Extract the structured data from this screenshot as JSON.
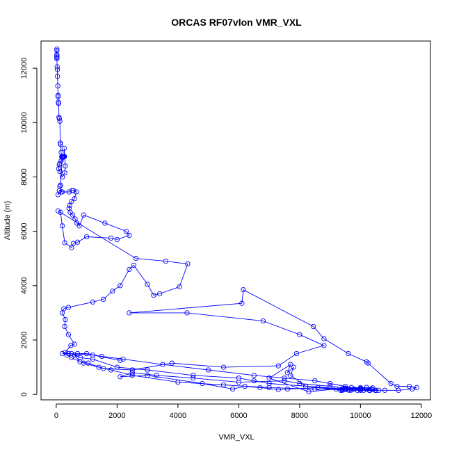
{
  "chart_data": {
    "type": "line",
    "title": "ORCAS RF07vlon VMR_VXL",
    "xlabel": "VMR_VXL",
    "ylabel": "Altitude (m)",
    "xlim": [
      -500,
      12300
    ],
    "ylim": [
      -200,
      13000
    ],
    "x_ticks": [
      0,
      2000,
      4000,
      6000,
      8000,
      10000,
      12000
    ],
    "y_ticks": [
      0,
      2000,
      4000,
      6000,
      8000,
      10000,
      12000
    ],
    "grid": false,
    "legend": "none",
    "series": [
      {
        "color": "#0000ff",
        "marker": "open-circle",
        "points": [
          [
            20,
            12700
          ],
          [
            20,
            12650
          ],
          [
            20,
            12500
          ],
          [
            20,
            12450
          ],
          [
            20,
            12400
          ],
          [
            20,
            12350
          ],
          [
            30,
            12050
          ],
          [
            40,
            11950
          ],
          [
            40,
            11700
          ],
          [
            50,
            11350
          ],
          [
            60,
            11000
          ],
          [
            60,
            10950
          ],
          [
            70,
            10750
          ],
          [
            80,
            10700
          ],
          [
            90,
            10200
          ],
          [
            100,
            10150
          ],
          [
            120,
            10050
          ],
          [
            130,
            9250
          ],
          [
            140,
            9200
          ],
          [
            160,
            8900
          ],
          [
            180,
            8750
          ],
          [
            190,
            8750
          ],
          [
            200,
            8750
          ],
          [
            210,
            8750
          ],
          [
            220,
            8750
          ],
          [
            230,
            8750
          ],
          [
            240,
            8750
          ],
          [
            250,
            8750
          ],
          [
            260,
            8750
          ],
          [
            270,
            8750
          ],
          [
            260,
            9050
          ],
          [
            300,
            8400
          ],
          [
            280,
            8150
          ],
          [
            200,
            8000
          ],
          [
            120,
            8200
          ],
          [
            80,
            8300
          ],
          [
            100,
            8450
          ],
          [
            120,
            8500
          ],
          [
            160,
            8600
          ],
          [
            200,
            8700
          ],
          [
            140,
            7700
          ],
          [
            120,
            7650
          ],
          [
            160,
            7450
          ],
          [
            60,
            7350
          ],
          [
            100,
            7500
          ],
          [
            200,
            7450
          ],
          [
            420,
            7450
          ],
          [
            520,
            7500
          ],
          [
            560,
            7500
          ],
          [
            660,
            7450
          ],
          [
            600,
            7200
          ],
          [
            500,
            7100
          ],
          [
            440,
            6950
          ],
          [
            420,
            6850
          ],
          [
            460,
            6700
          ],
          [
            540,
            6600
          ],
          [
            620,
            6450
          ],
          [
            680,
            6300
          ],
          [
            760,
            6200
          ],
          [
            900,
            6600
          ],
          [
            1600,
            6300
          ],
          [
            2300,
            6000
          ],
          [
            2400,
            5850
          ],
          [
            2000,
            5700
          ],
          [
            1800,
            5750
          ],
          [
            1000,
            5800
          ],
          [
            700,
            5600
          ],
          [
            560,
            5550
          ],
          [
            500,
            5400
          ],
          [
            280,
            5580
          ],
          [
            200,
            6200
          ],
          [
            140,
            6700
          ],
          [
            60,
            6750
          ],
          [
            2620,
            5000
          ],
          [
            3600,
            4900
          ],
          [
            4320,
            4800
          ],
          [
            4050,
            3960
          ],
          [
            3400,
            3700
          ],
          [
            3200,
            3650
          ],
          [
            3000,
            4050
          ],
          [
            2550,
            4750
          ],
          [
            2400,
            4600
          ],
          [
            2100,
            4000
          ],
          [
            1850,
            3800
          ],
          [
            1550,
            3500
          ],
          [
            1200,
            3400
          ],
          [
            400,
            3200
          ],
          [
            250,
            3150
          ],
          [
            200,
            3000
          ],
          [
            300,
            2750
          ],
          [
            280,
            2500
          ],
          [
            400,
            2200
          ],
          [
            600,
            1850
          ],
          [
            480,
            1800
          ],
          [
            300,
            1550
          ],
          [
            200,
            1500
          ],
          [
            500,
            1500
          ],
          [
            600,
            1450
          ],
          [
            780,
            1200
          ],
          [
            1050,
            1150
          ],
          [
            1550,
            950
          ],
          [
            2500,
            900
          ],
          [
            3800,
            1150
          ],
          [
            5500,
            1000
          ],
          [
            7300,
            1050
          ],
          [
            7900,
            1500
          ],
          [
            8800,
            1800
          ],
          [
            8000,
            2200
          ],
          [
            6800,
            2700
          ],
          [
            4300,
            3000
          ],
          [
            2400,
            3000
          ],
          [
            6100,
            3350
          ],
          [
            6150,
            3850
          ],
          [
            8450,
            2500
          ],
          [
            8800,
            2050
          ],
          [
            9600,
            1500
          ],
          [
            10200,
            1200
          ],
          [
            10250,
            1150
          ],
          [
            11000,
            400
          ],
          [
            11200,
            300
          ],
          [
            11600,
            300
          ],
          [
            11850,
            250
          ],
          [
            11700,
            200
          ],
          [
            11250,
            150
          ],
          [
            10800,
            150
          ],
          [
            10500,
            150
          ],
          [
            10300,
            150
          ],
          [
            10100,
            150
          ],
          [
            9900,
            150
          ],
          [
            9650,
            150
          ],
          [
            9500,
            180
          ],
          [
            9350,
            150
          ],
          [
            9400,
            200
          ],
          [
            9700,
            250
          ],
          [
            10000,
            250
          ],
          [
            10200,
            260
          ],
          [
            10400,
            240
          ],
          [
            10000,
            200
          ],
          [
            9200,
            200
          ],
          [
            8600,
            250
          ],
          [
            7600,
            200
          ],
          [
            7300,
            180
          ],
          [
            6700,
            250
          ],
          [
            6200,
            300
          ],
          [
            5800,
            200
          ],
          [
            4800,
            400
          ],
          [
            3000,
            700
          ],
          [
            2100,
            650
          ],
          [
            2500,
            800
          ],
          [
            3300,
            700
          ],
          [
            4500,
            600
          ],
          [
            6000,
            450
          ],
          [
            7500,
            500
          ],
          [
            8000,
            400
          ],
          [
            9000,
            300
          ],
          [
            9800,
            200
          ],
          [
            10000,
            150
          ],
          [
            10300,
            140
          ],
          [
            10500,
            140
          ],
          [
            10600,
            150
          ],
          [
            10350,
            200
          ],
          [
            10000,
            220
          ],
          [
            9500,
            230
          ],
          [
            8300,
            100
          ],
          [
            7000,
            600
          ],
          [
            7700,
            1100
          ],
          [
            7600,
            800
          ],
          [
            7800,
            1000
          ],
          [
            7700,
            700
          ],
          [
            8200,
            300
          ],
          [
            9400,
            150
          ],
          [
            9600,
            160
          ],
          [
            9700,
            160
          ],
          [
            9500,
            200
          ],
          [
            7000,
            400
          ],
          [
            6500,
            500
          ],
          [
            6000,
            600
          ],
          [
            4500,
            700
          ],
          [
            3000,
            900
          ],
          [
            2000,
            1000
          ],
          [
            1200,
            1300
          ],
          [
            800,
            1350
          ],
          [
            600,
            1450
          ],
          [
            700,
            1500
          ],
          [
            1000,
            1500
          ],
          [
            1500,
            1400
          ],
          [
            2200,
            1300
          ],
          [
            3500,
            1100
          ],
          [
            5000,
            900
          ],
          [
            6500,
            700
          ],
          [
            7500,
            600
          ],
          [
            8500,
            500
          ],
          [
            9000,
            400
          ],
          [
            9500,
            300
          ],
          [
            9700,
            250
          ],
          [
            10000,
            200
          ],
          [
            10200,
            180
          ],
          [
            10400,
            170
          ],
          [
            10000,
            160
          ],
          [
            9600,
            170
          ],
          [
            9400,
            180
          ],
          [
            8500,
            200
          ],
          [
            7000,
            250
          ],
          [
            5500,
            350
          ],
          [
            4000,
            450
          ],
          [
            2500,
            700
          ],
          [
            1800,
            900
          ],
          [
            1400,
            1000
          ],
          [
            900,
            1150
          ],
          [
            500,
            1350
          ],
          [
            350,
            1450
          ],
          [
            400,
            1500
          ],
          [
            1200,
            1450
          ],
          [
            2100,
            1250
          ]
        ]
      }
    ]
  }
}
